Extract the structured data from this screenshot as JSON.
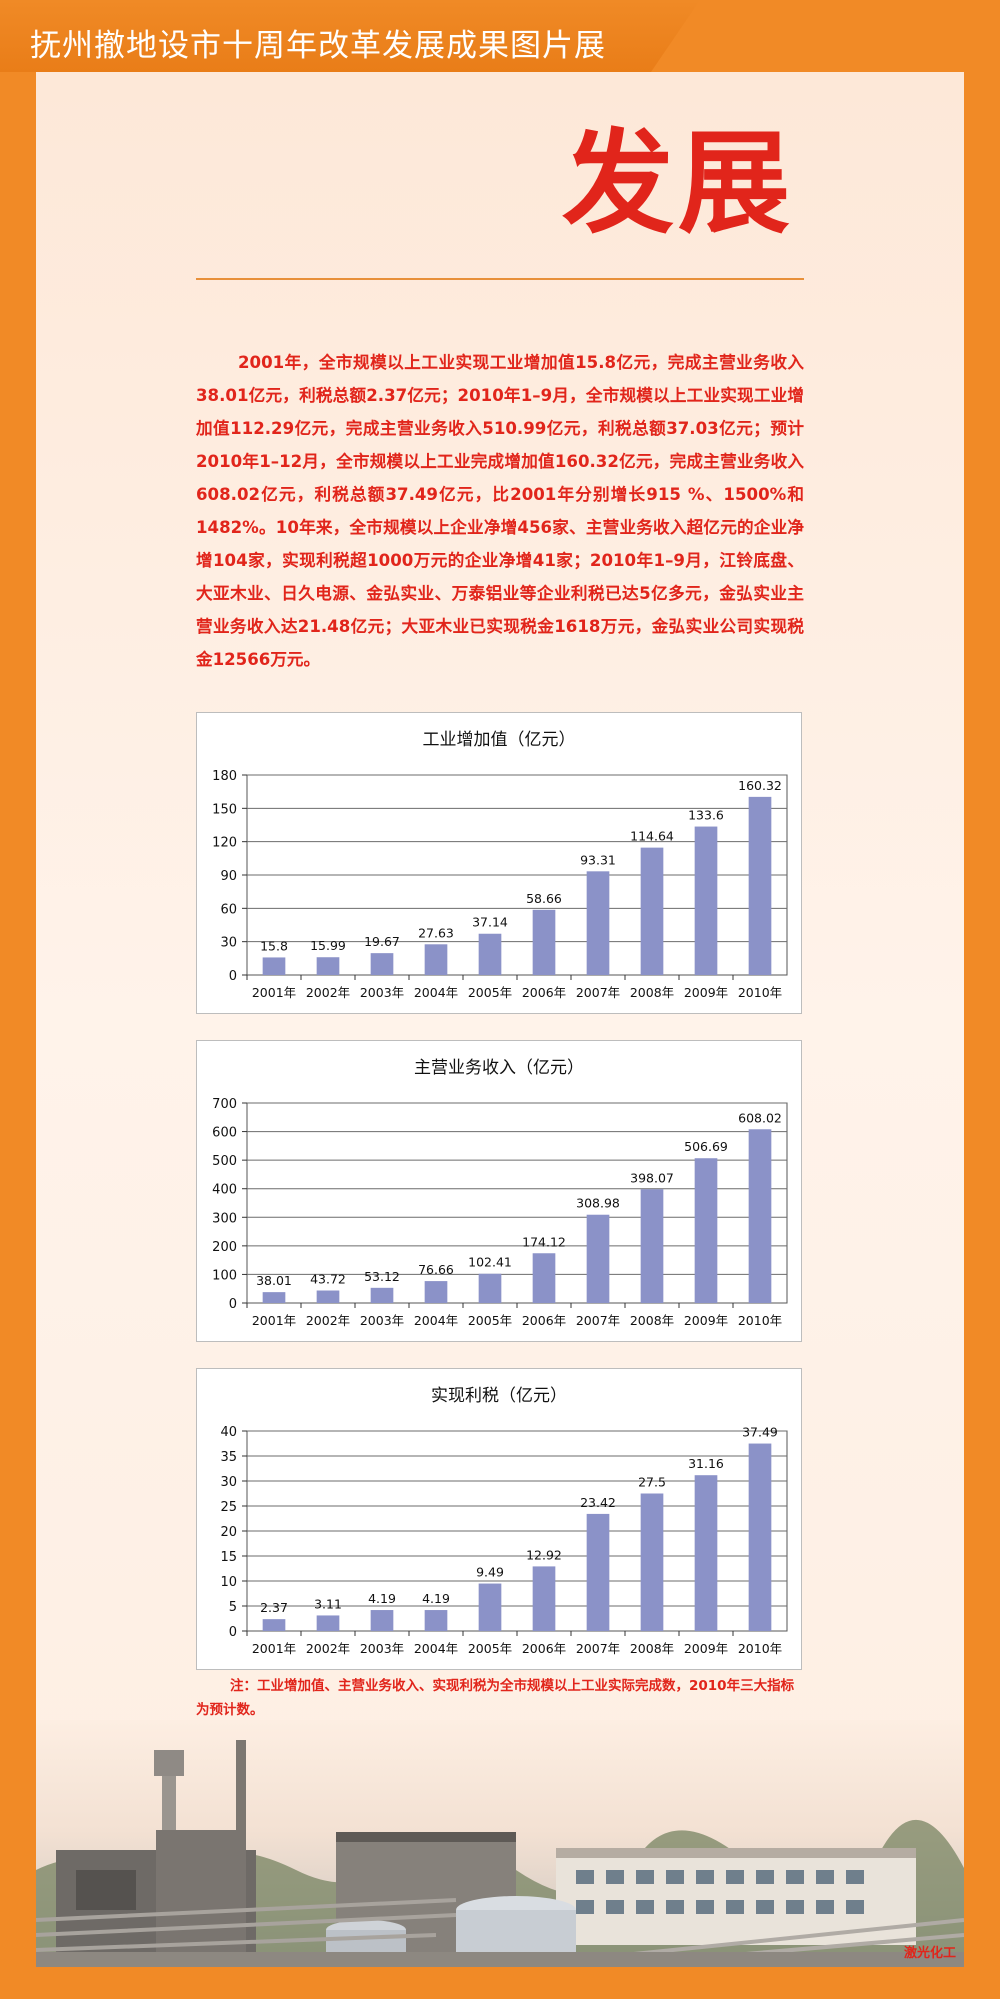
{
  "banner": {
    "title": "抚州撤地设市十周年改革发展成果图片展"
  },
  "heading": "发展",
  "body_text": "2001年，全市规模以上工业实现工业增加值15.8亿元，完成主营业务收入38.01亿元，利税总额2.37亿元；2010年1–9月，全市规模以上工业实现工业增加值112.29亿元，完成主营业务收入510.99亿元，利税总额37.03亿元；预计2010年1–12月，全市规模以上工业完成增加值160.32亿元，完成主营业务收入608.02亿元，利税总额37.49亿元，比2001年分别增长915 %、1500%和1482%。10年来，全市规模以上企业净增456家、主营业务收入超亿元的企业净增104家，实现利税超1000万元的企业净增41家；2010年1–9月，江铃底盘、大亚木业、日久电源、金弘实业、万泰铝业等企业利税已达5亿多元，金弘实业主营业务收入达21.48亿元；大亚木业已实现税金1618万元，金弘实业公司实现税金12566万元。",
  "colors": {
    "bar": "#8b92c8",
    "accent": "#e1251b",
    "frame": "#f18a26"
  },
  "chart_data": [
    {
      "type": "bar",
      "title": "工业增加值（亿元）",
      "categories": [
        "2001年",
        "2002年",
        "2003年",
        "2004年",
        "2005年",
        "2006年",
        "2007年",
        "2008年",
        "2009年",
        "2010年"
      ],
      "values": [
        15.8,
        15.99,
        19.67,
        27.63,
        37.14,
        58.66,
        93.31,
        114.64,
        133.6,
        160.32
      ],
      "value_labels": [
        "15.8",
        "15.99",
        "19.67",
        "27.63",
        "37.14",
        "58.66",
        "93.31",
        "114.64",
        "133.6",
        "160.32"
      ],
      "yticks": [
        "0",
        "30",
        "60",
        "90",
        "120",
        "150",
        "180"
      ],
      "ylim": [
        0,
        180
      ],
      "grid": true
    },
    {
      "type": "bar",
      "title": "主营业务收入（亿元）",
      "categories": [
        "2001年",
        "2002年",
        "2003年",
        "2004年",
        "2005年",
        "2006年",
        "2007年",
        "2008年",
        "2009年",
        "2010年"
      ],
      "values": [
        38.01,
        43.72,
        53.12,
        76.66,
        102.41,
        174.12,
        308.98,
        398.07,
        506.69,
        608.02
      ],
      "value_labels": [
        "38.01",
        "43.72",
        "53.12",
        "76.66",
        "102.41",
        "174.12",
        "308.98",
        "398.07",
        "506.69",
        "608.02"
      ],
      "yticks": [
        "0",
        "100",
        "200",
        "300",
        "400",
        "500",
        "600",
        "700"
      ],
      "ylim": [
        0,
        700
      ],
      "grid": true
    },
    {
      "type": "bar",
      "title": "实现利税（亿元）",
      "categories": [
        "2001年",
        "2002年",
        "2003年",
        "2004年",
        "2005年",
        "2006年",
        "2007年",
        "2008年",
        "2009年",
        "2010年"
      ],
      "values": [
        2.37,
        3.11,
        4.19,
        4.19,
        9.49,
        12.92,
        23.42,
        27.5,
        31.16,
        37.49
      ],
      "value_labels": [
        "2.37",
        "3.11",
        "4.19",
        "4.19",
        "9.49",
        "12.92",
        "23.42",
        "27.5",
        "31.16",
        "37.49"
      ],
      "yticks": [
        "0",
        "5",
        "10",
        "15",
        "20",
        "25",
        "30",
        "35",
        "40"
      ],
      "ylim": [
        0,
        40
      ],
      "grid": true
    }
  ],
  "note": "注：工业增加值、主营业务收入、实现利税为全市规模以上工业实际完成数，2010年三大指标为预计数。",
  "credit": "激光化工"
}
